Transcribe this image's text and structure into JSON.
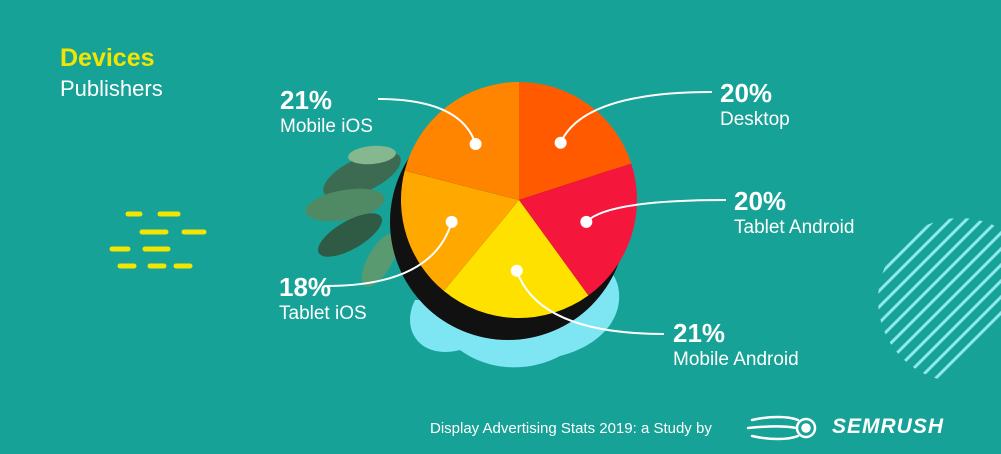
{
  "header": {
    "title": "Devices",
    "subtitle": "Publishers"
  },
  "footer": {
    "study_text": "Display Advertising Stats 2019: a Study by",
    "brand_name": "SEMRUSH"
  },
  "colors": {
    "background": "#17a297",
    "title": "#f2e600",
    "text": "#ffffff",
    "shadow_blob": "#7ee6f2"
  },
  "chart_data": {
    "type": "pie",
    "title": "Devices",
    "subtitle": "Publishers",
    "slices": [
      {
        "label": "Desktop",
        "display": "20%",
        "value": 20,
        "color": "#ff5a00"
      },
      {
        "label": "Tablet Android",
        "display": "20%",
        "value": 20,
        "color": "#f5163c"
      },
      {
        "label": "Mobile Android",
        "display": "21%",
        "value": 21,
        "color": "#ffe100"
      },
      {
        "label": "Tablet iOS",
        "display": "18%",
        "value": 18,
        "color": "#ffa800"
      },
      {
        "label": "Mobile iOS",
        "display": "21%",
        "value": 21,
        "color": "#ff8400"
      }
    ]
  }
}
